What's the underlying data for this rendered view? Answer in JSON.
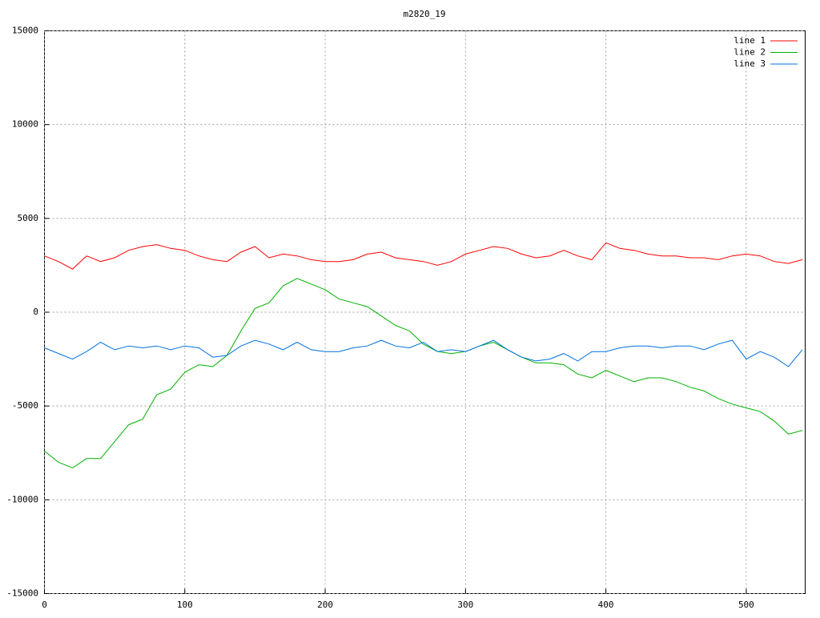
{
  "chart_data": {
    "type": "line",
    "title": "m2820_19",
    "x": [
      0,
      10,
      20,
      30,
      40,
      50,
      60,
      70,
      80,
      90,
      100,
      110,
      120,
      130,
      140,
      150,
      160,
      170,
      180,
      190,
      200,
      210,
      220,
      230,
      240,
      250,
      260,
      270,
      280,
      290,
      300,
      310,
      320,
      330,
      340,
      350,
      360,
      370,
      380,
      390,
      400,
      410,
      420,
      430,
      440,
      450,
      460,
      470,
      480,
      490,
      500,
      510,
      520,
      530,
      540
    ],
    "series": [
      {
        "name": "line 1",
        "color": "#ff0000",
        "values": [
          3000,
          2700,
          2300,
          3000,
          2700,
          2900,
          3300,
          3500,
          3600,
          3400,
          3300,
          3000,
          2800,
          2700,
          3200,
          3500,
          2900,
          3100,
          3000,
          2800,
          2700,
          2700,
          2800,
          3100,
          3200,
          2900,
          2800,
          2700,
          2500,
          2700,
          3100,
          3300,
          3500,
          3400,
          3100,
          2900,
          3000,
          3300,
          3000,
          2800,
          3700,
          3400,
          3300,
          3100,
          3000,
          3000,
          2900,
          2900,
          2800,
          3000,
          3100,
          3000,
          2700,
          2600,
          2800
        ]
      },
      {
        "name": "line 2",
        "color": "#00b000",
        "values": [
          -7400,
          -8000,
          -8300,
          -7800,
          -7800,
          -6900,
          -6000,
          -5700,
          -4400,
          -4100,
          -3200,
          -2800,
          -2900,
          -2300,
          -1000,
          200,
          500,
          1400,
          1800,
          1500,
          1200,
          700,
          500,
          300,
          -200,
          -700,
          -1000,
          -1700,
          -2100,
          -2200,
          -2100,
          -1800,
          -1600,
          -2000,
          -2400,
          -2700,
          -2700,
          -2800,
          -3300,
          -3500,
          -3100,
          -3400,
          -3700,
          -3500,
          -3500,
          -3700,
          -4000,
          -4200,
          -4600,
          -4900,
          -5100,
          -5300,
          -5800,
          -6500,
          -6300
        ]
      },
      {
        "name": "line 3",
        "color": "#0070e0",
        "values": [
          -1900,
          -2200,
          -2500,
          -2100,
          -1600,
          -2000,
          -1800,
          -1900,
          -1800,
          -2000,
          -1800,
          -1900,
          -2400,
          -2300,
          -1800,
          -1500,
          -1700,
          -2000,
          -1600,
          -2000,
          -2100,
          -2100,
          -1900,
          -1800,
          -1500,
          -1800,
          -1900,
          -1600,
          -2100,
          -2000,
          -2100,
          -1800,
          -1500,
          -2000,
          -2400,
          -2600,
          -2500,
          -2200,
          -2600,
          -2100,
          -2100,
          -1900,
          -1800,
          -1800,
          -1900,
          -1800,
          -1800,
          -2000,
          -1700,
          -1500,
          -2500,
          -2100,
          -2400,
          -2900,
          -2000
        ]
      }
    ],
    "xlim": [
      0,
      542
    ],
    "ylim": [
      -15000,
      15000
    ],
    "xticks": [
      0,
      100,
      200,
      300,
      400,
      500
    ],
    "yticks": [
      -15000,
      -10000,
      -5000,
      0,
      5000,
      10000,
      15000
    ],
    "grid": true,
    "legend": "top-right"
  }
}
